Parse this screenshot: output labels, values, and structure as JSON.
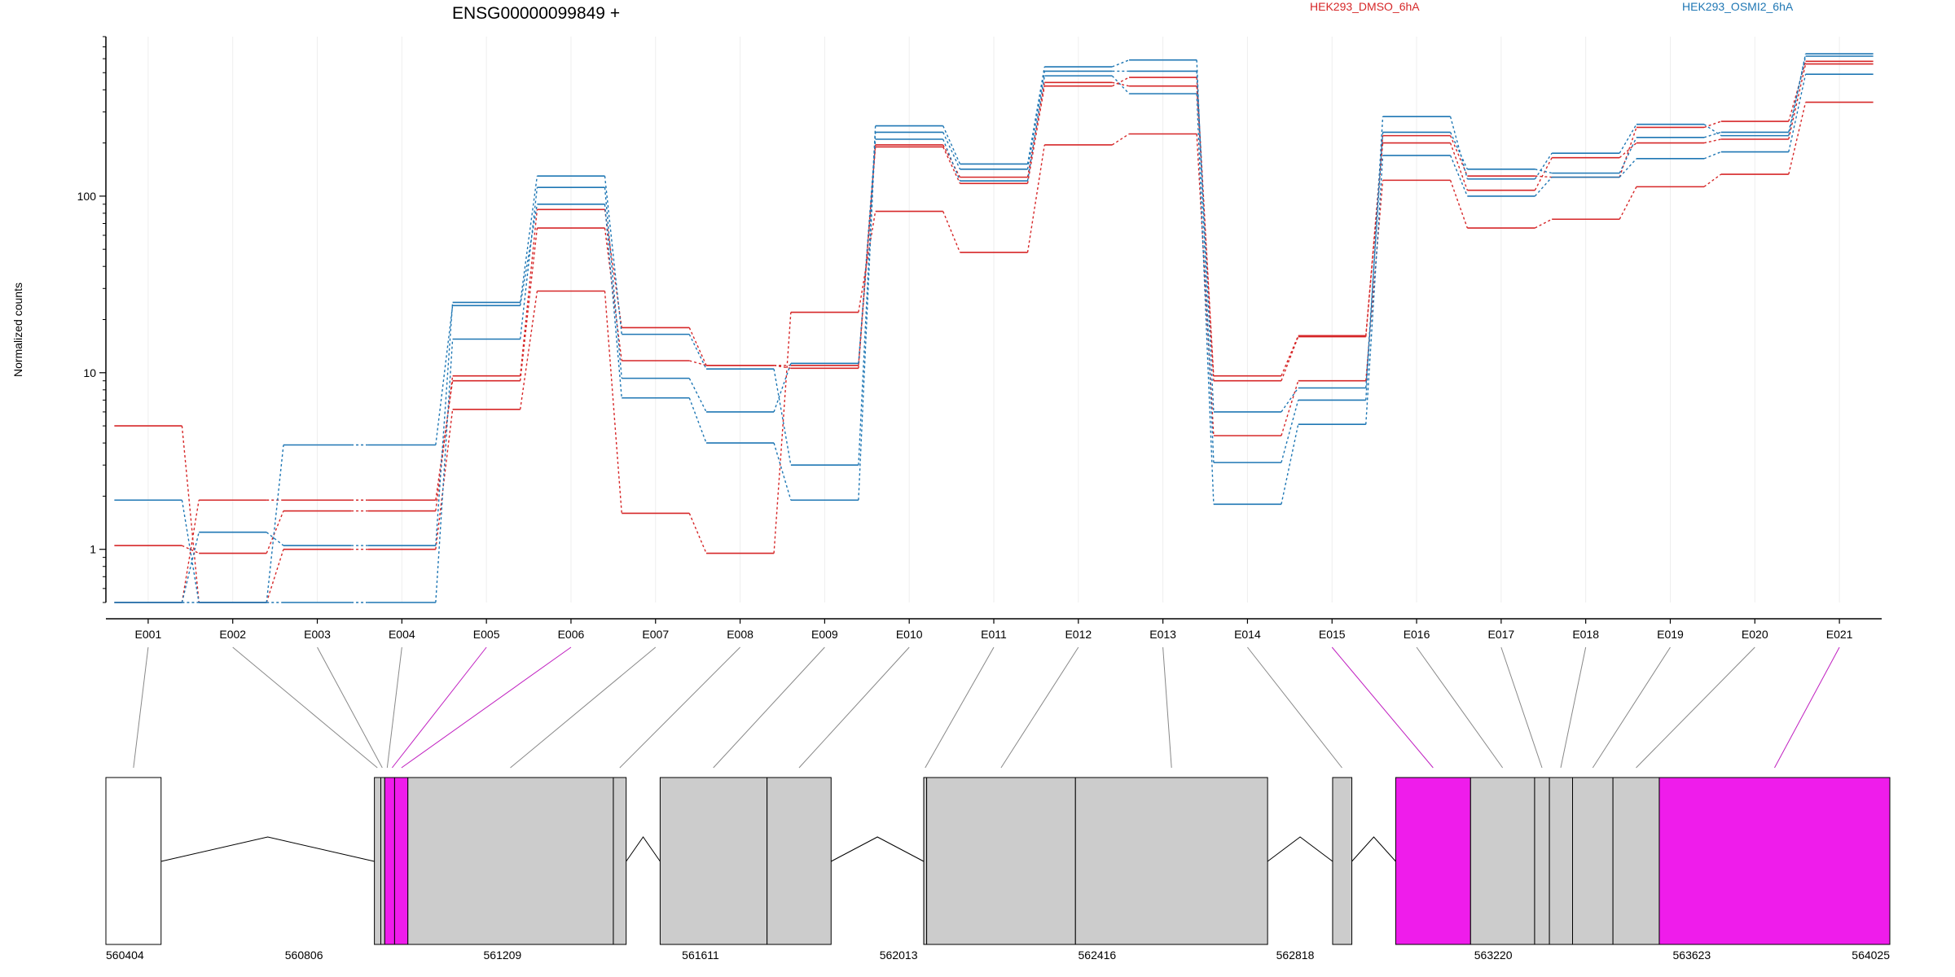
{
  "chart_data": {
    "type": "line",
    "title": "ENSG00000099849 +",
    "ylabel": "Normalized counts",
    "xlabel": "",
    "yscale": "log",
    "ylim": [
      0.5,
      800
    ],
    "y_ticks": [
      1,
      10,
      100
    ],
    "y_tick_labels": [
      "1",
      "10",
      "100"
    ],
    "grid": "vertical",
    "legend": "top-right",
    "categories": [
      "E001",
      "E002",
      "E003",
      "E004",
      "E005",
      "E006",
      "E007",
      "E008",
      "E009",
      "E010",
      "E011",
      "E012",
      "E013",
      "E014",
      "E015",
      "E016",
      "E017",
      "E018",
      "E019",
      "E020",
      "E021"
    ],
    "conditions": [
      {
        "name": "HEK293_DMSO_6hA",
        "color": "#d62728"
      },
      {
        "name": "HEK293_OSMI2_6hA",
        "color": "#1f77b4"
      }
    ],
    "series": [
      {
        "condition": "HEK293_DMSO_6hA",
        "values": [
          5,
          0.5,
          1,
          1,
          6.2,
          29,
          1.6,
          0.95,
          22,
          82,
          48,
          195,
          225,
          4.4,
          9,
          123,
          66,
          74,
          113,
          133,
          340
        ]
      },
      {
        "condition": "HEK293_DMSO_6hA",
        "values": [
          1.05,
          0.95,
          1.65,
          1.65,
          9.6,
          84,
          18,
          11,
          10.6,
          190,
          118,
          420,
          470,
          9.6,
          16.2,
          200,
          108,
          165,
          200,
          210,
          560
        ]
      },
      {
        "condition": "HEK293_DMSO_6hA",
        "values": [
          0.5,
          1.9,
          1.9,
          1.9,
          9,
          66,
          11.7,
          11,
          11,
          195,
          128,
          440,
          420,
          9,
          16,
          220,
          130,
          128,
          245,
          265,
          580
        ]
      },
      {
        "condition": "HEK293_OSMI2_6hA",
        "values": [
          1.9,
          0.5,
          0.5,
          0.5,
          15.5,
          112,
          9.3,
          6,
          11.3,
          210,
          122,
          480,
          380,
          1.8,
          5.1,
          170,
          100,
          128,
          163,
          178,
          490
        ]
      },
      {
        "condition": "HEK293_OSMI2_6hA",
        "values": [
          0.5,
          1.25,
          1.05,
          1.05,
          25,
          130,
          16.5,
          10.5,
          3,
          250,
          152,
          540,
          590,
          3.1,
          7,
          282,
          125,
          175,
          255,
          220,
          640
        ]
      },
      {
        "condition": "HEK293_OSMI2_6hA",
        "values": [
          0.5,
          0.5,
          3.9,
          3.9,
          24,
          90,
          7.2,
          4,
          1.9,
          230,
          142,
          510,
          510,
          6,
          8.2,
          230,
          142,
          135,
          215,
          230,
          620
        ]
      }
    ],
    "gene_model": {
      "x_ticks": [
        560404,
        560806,
        561209,
        561611,
        562013,
        562416,
        562818,
        563220,
        563623,
        564025
      ],
      "x_tick_labels": [
        "560404",
        "560806",
        "561209",
        "561611",
        "562013",
        "562416",
        "562818",
        "563220",
        "563623",
        "564025"
      ],
      "xlim": [
        560404,
        564025
      ],
      "highlight_color": "#ef1ceb",
      "exon_fill": "#cccccc",
      "blocks": [
        {
          "start": 560404,
          "end": 560516,
          "type": "utr"
        },
        {
          "start": 560949,
          "end": 560962,
          "type": "exon"
        },
        {
          "start": 560962,
          "end": 560970,
          "type": "exon"
        },
        {
          "start": 560970,
          "end": 560990,
          "type": "highlight"
        },
        {
          "start": 560990,
          "end": 561017,
          "type": "highlight"
        },
        {
          "start": 561017,
          "end": 561434,
          "type": "exon"
        },
        {
          "start": 561434,
          "end": 561460,
          "type": "exon"
        },
        {
          "start": 561529,
          "end": 561746,
          "type": "exon"
        },
        {
          "start": 561746,
          "end": 561876,
          "type": "exon"
        },
        {
          "start": 562064,
          "end": 562070,
          "type": "exon"
        },
        {
          "start": 562070,
          "end": 562372,
          "type": "exon"
        },
        {
          "start": 562372,
          "end": 562762,
          "type": "exon"
        },
        {
          "start": 562894,
          "end": 562933,
          "type": "exon"
        },
        {
          "start": 563022,
          "end": 563174,
          "type": "highlight"
        },
        {
          "start": 563174,
          "end": 563304,
          "type": "exon"
        },
        {
          "start": 563304,
          "end": 563334,
          "type": "exon"
        },
        {
          "start": 563334,
          "end": 563381,
          "type": "exon"
        },
        {
          "start": 563381,
          "end": 563463,
          "type": "exon"
        },
        {
          "start": 563463,
          "end": 563557,
          "type": "exon"
        },
        {
          "start": 563557,
          "end": 564025,
          "type": "highlight"
        }
      ],
      "introns": [
        {
          "from": 560516,
          "to": 560949
        },
        {
          "from": 561460,
          "to": 561529
        },
        {
          "from": 561876,
          "to": 562064
        },
        {
          "from": 562762,
          "to": 562894
        },
        {
          "from": 562933,
          "to": 563022
        }
      ],
      "connectors": [
        {
          "bin": 0,
          "pos": 560460,
          "highlight": false
        },
        {
          "bin": 1,
          "pos": 560955,
          "highlight": false
        },
        {
          "bin": 2,
          "pos": 560965,
          "highlight": false
        },
        {
          "bin": 3,
          "pos": 560975,
          "highlight": false
        },
        {
          "bin": 4,
          "pos": 560985,
          "highlight": true
        },
        {
          "bin": 5,
          "pos": 561004,
          "highlight": true
        },
        {
          "bin": 6,
          "pos": 561225,
          "highlight": false
        },
        {
          "bin": 7,
          "pos": 561447,
          "highlight": false
        },
        {
          "bin": 8,
          "pos": 561637,
          "highlight": false
        },
        {
          "bin": 9,
          "pos": 561811,
          "highlight": false
        },
        {
          "bin": 10,
          "pos": 562067,
          "highlight": false
        },
        {
          "bin": 11,
          "pos": 562221,
          "highlight": false
        },
        {
          "bin": 12,
          "pos": 562567,
          "highlight": false
        },
        {
          "bin": 13,
          "pos": 562913,
          "highlight": false
        },
        {
          "bin": 14,
          "pos": 563098,
          "highlight": true
        },
        {
          "bin": 15,
          "pos": 563239,
          "highlight": false
        },
        {
          "bin": 16,
          "pos": 563319,
          "highlight": false
        },
        {
          "bin": 17,
          "pos": 563357,
          "highlight": false
        },
        {
          "bin": 18,
          "pos": 563422,
          "highlight": false
        },
        {
          "bin": 19,
          "pos": 563510,
          "highlight": false
        },
        {
          "bin": 20,
          "pos": 563791,
          "highlight": true
        }
      ]
    }
  }
}
